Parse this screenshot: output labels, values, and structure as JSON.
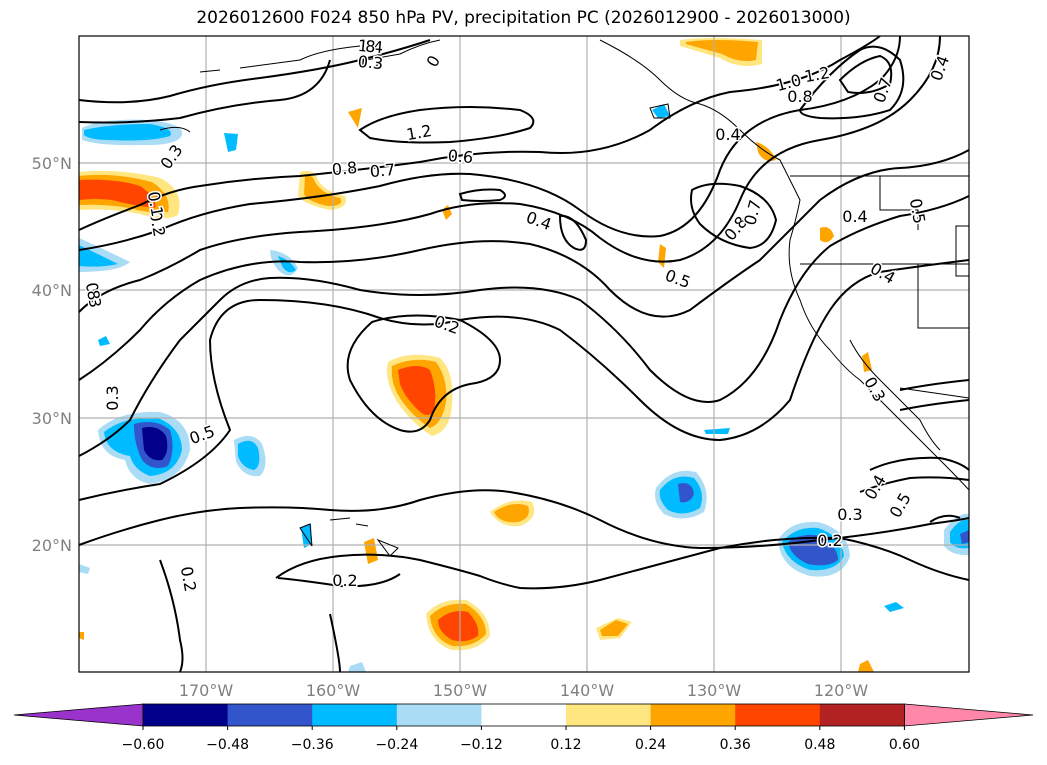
{
  "title": "2026012600 F024 850 hPa PV, precipitation PC (2026012900 - 2026013000)",
  "lon_ticks": [
    "170°W",
    "160°W",
    "150°W",
    "140°W",
    "130°W",
    "120°W"
  ],
  "lat_ticks": [
    "50°N",
    "40°N",
    "30°N",
    "20°N"
  ],
  "colorbar": {
    "colors": [
      "#9933cc",
      "#00008b",
      "#3355cc",
      "#00bbff",
      "#aaddf5",
      "#ffffff",
      "#ffe680",
      "#ffa500",
      "#ff4500",
      "#b22222",
      "#ff88aa"
    ],
    "labels": [
      "−0.60",
      "−0.48",
      "−0.36",
      "−0.24",
      "−0.12",
      "0.12",
      "0.24",
      "0.36",
      "0.48",
      "0.60"
    ]
  },
  "contour_labels": [
    "1.4",
    "1.2",
    "0",
    "1.2",
    "0.8",
    "0.7",
    "0.6",
    "0.4",
    "0.5",
    "0.2",
    "0.3",
    "0.3",
    "0.5",
    "0.2",
    "0.2",
    "1.2",
    "1.0",
    "0.8",
    "0.7",
    "0.4",
    "0.4",
    "0.8",
    "0.7",
    "0.5",
    "0.4",
    "0.3",
    "0.4",
    "0.3",
    "0.2",
    "0.4",
    "0.5",
    "0.3",
    "0.2",
    "0.1",
    "8",
    "8",
    "0.3"
  ]
}
